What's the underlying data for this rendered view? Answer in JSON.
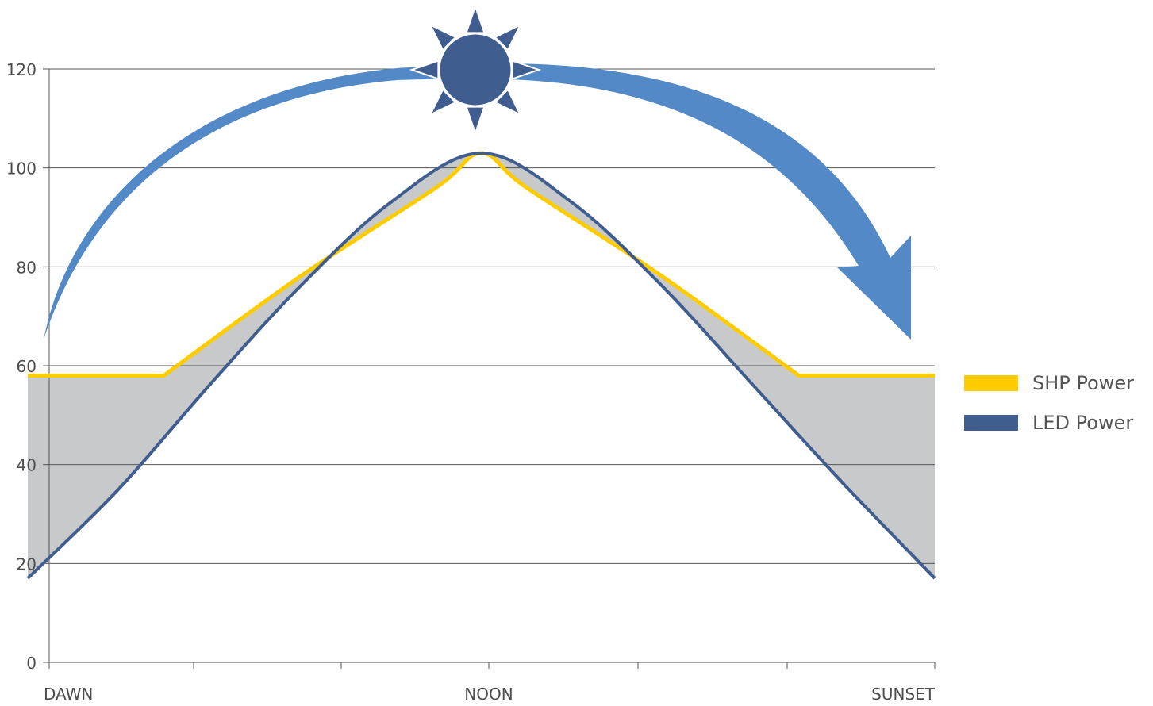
{
  "chart_data": {
    "type": "line",
    "x_categories": [
      "DAWN",
      "NOON",
      "SUNSET"
    ],
    "ylim": [
      0,
      120
    ],
    "yticks": [
      0,
      20,
      40,
      60,
      80,
      100,
      120
    ],
    "grid": true,
    "fill_between_series": true,
    "series": [
      {
        "name": "SHP Power",
        "color": "#ffcc00",
        "points": [
          [
            0,
            58
          ],
          [
            0.15,
            58
          ],
          [
            0.3,
            78
          ],
          [
            0.45,
            96
          ],
          [
            0.5,
            103
          ],
          [
            0.55,
            96
          ],
          [
            0.7,
            78
          ],
          [
            0.85,
            58
          ],
          [
            1,
            58
          ]
        ]
      },
      {
        "name": "LED Power",
        "color": "#3f5e8f",
        "points": [
          [
            0,
            17
          ],
          [
            0.1,
            35
          ],
          [
            0.2,
            56
          ],
          [
            0.3,
            76
          ],
          [
            0.4,
            93
          ],
          [
            0.5,
            103
          ],
          [
            0.6,
            93
          ],
          [
            0.7,
            76
          ],
          [
            0.8,
            56
          ],
          [
            0.9,
            36
          ],
          [
            1,
            17
          ]
        ]
      }
    ],
    "legend_position": "right",
    "annotations": [
      {
        "name": "sun-icon",
        "color": "#3f5e8f"
      },
      {
        "name": "sun-path-arrow",
        "color": "#5289c6"
      }
    ],
    "fill_color": "#c8c9cb",
    "grid_color": "#555555"
  },
  "legend": {
    "items": [
      {
        "label": "SHP Power",
        "color": "#ffcc00"
      },
      {
        "label": "LED Power",
        "color": "#3f5e8f"
      }
    ]
  }
}
